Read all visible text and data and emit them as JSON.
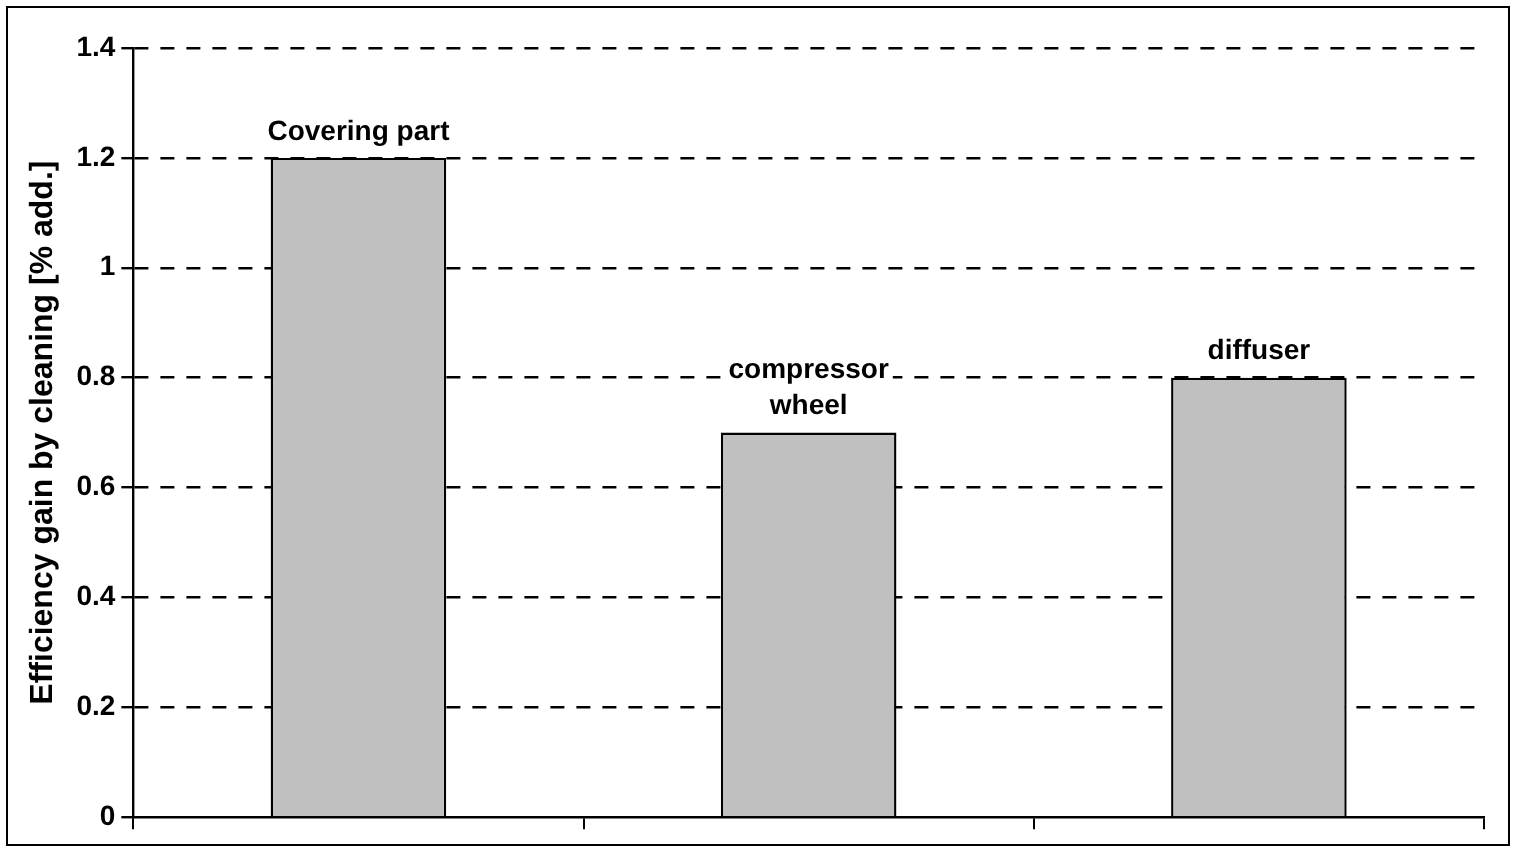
{
  "chart_data": {
    "type": "bar",
    "ylabel": "Efficiency gain by cleaning [% add.]",
    "categories": [
      "Covering part",
      "compressor wheel",
      "diffuser"
    ],
    "values": [
      1.2,
      0.7,
      0.8
    ],
    "color": "#c0c0c0",
    "ylim": [
      0,
      1.4
    ],
    "yticks": [
      0,
      0.2,
      0.4,
      0.6,
      0.8,
      1,
      1.2,
      1.4
    ],
    "grid": "y",
    "line_style": "dashed",
    "tick_labels": "y"
  }
}
